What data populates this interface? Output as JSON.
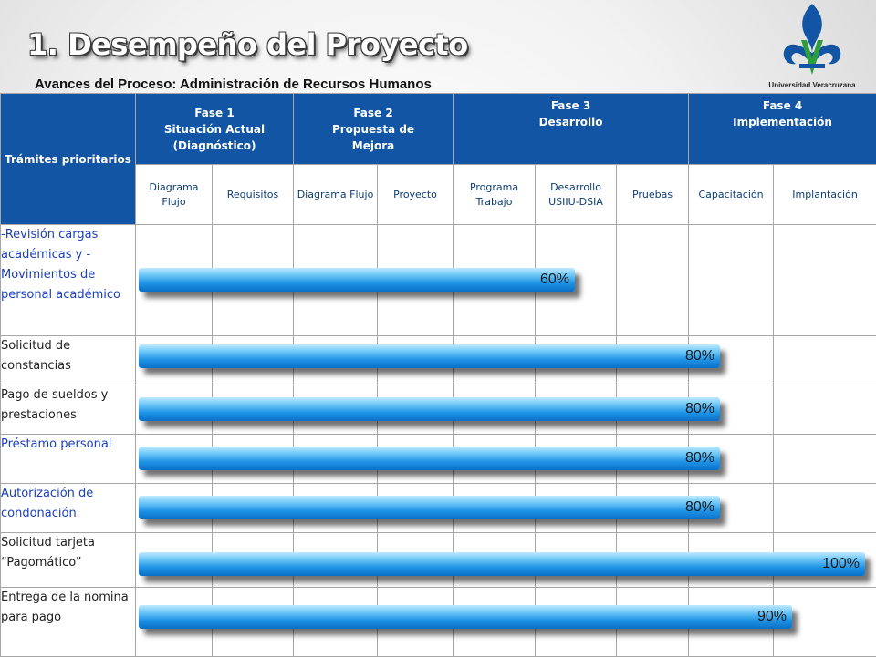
{
  "header": {
    "title": "1. Desempeño del Proyecto",
    "subtitle": "Avances del Proceso:  Administración de Recursos Humanos",
    "logo_text": "Universidad Veracruzana"
  },
  "table": {
    "corner": "Trámites prioritarios",
    "phases": [
      {
        "title": "Fase 1",
        "name": "Situación Actual (Diagnóstico)"
      },
      {
        "title": "Fase 2",
        "name": "Propuesta de Mejora"
      },
      {
        "title": "Fase 3",
        "name": "Desarrollo"
      },
      {
        "title": "Fase 4",
        "name": "Implementación"
      }
    ],
    "subcolumns": [
      "Diagrama Flujo",
      "Requisitos",
      "Diagrama Flujo",
      "Proyecto",
      "Programa Trabajo",
      "Desarrollo USIIU-DSIA",
      "Pruebas",
      "Capacitación",
      "Implantación"
    ],
    "rows": [
      {
        "label": "-Revisión cargas académicas y -Movimientos de personal académico",
        "progress": 60,
        "progress_label": "60%"
      },
      {
        "label": "Solicitud de constancias",
        "progress": 80,
        "progress_label": "80%"
      },
      {
        "label": "Pago de sueldos y prestaciones",
        "progress": 80,
        "progress_label": "80%"
      },
      {
        "label": "Préstamo personal",
        "progress": 80,
        "progress_label": "80%"
      },
      {
        "label": "Autorización de condonación",
        "progress": 80,
        "progress_label": "80%"
      },
      {
        "label": "Solicitud  tarjeta “Pagomático”",
        "progress": 100,
        "progress_label": "100%"
      },
      {
        "label": "Entrega de la nomina para pago",
        "progress": 90,
        "progress_label": "90%"
      }
    ]
  },
  "colors": {
    "header_blue": "#1155a4",
    "bar_blue": "#1d93e6",
    "label_blue": "#1a3fbf"
  }
}
